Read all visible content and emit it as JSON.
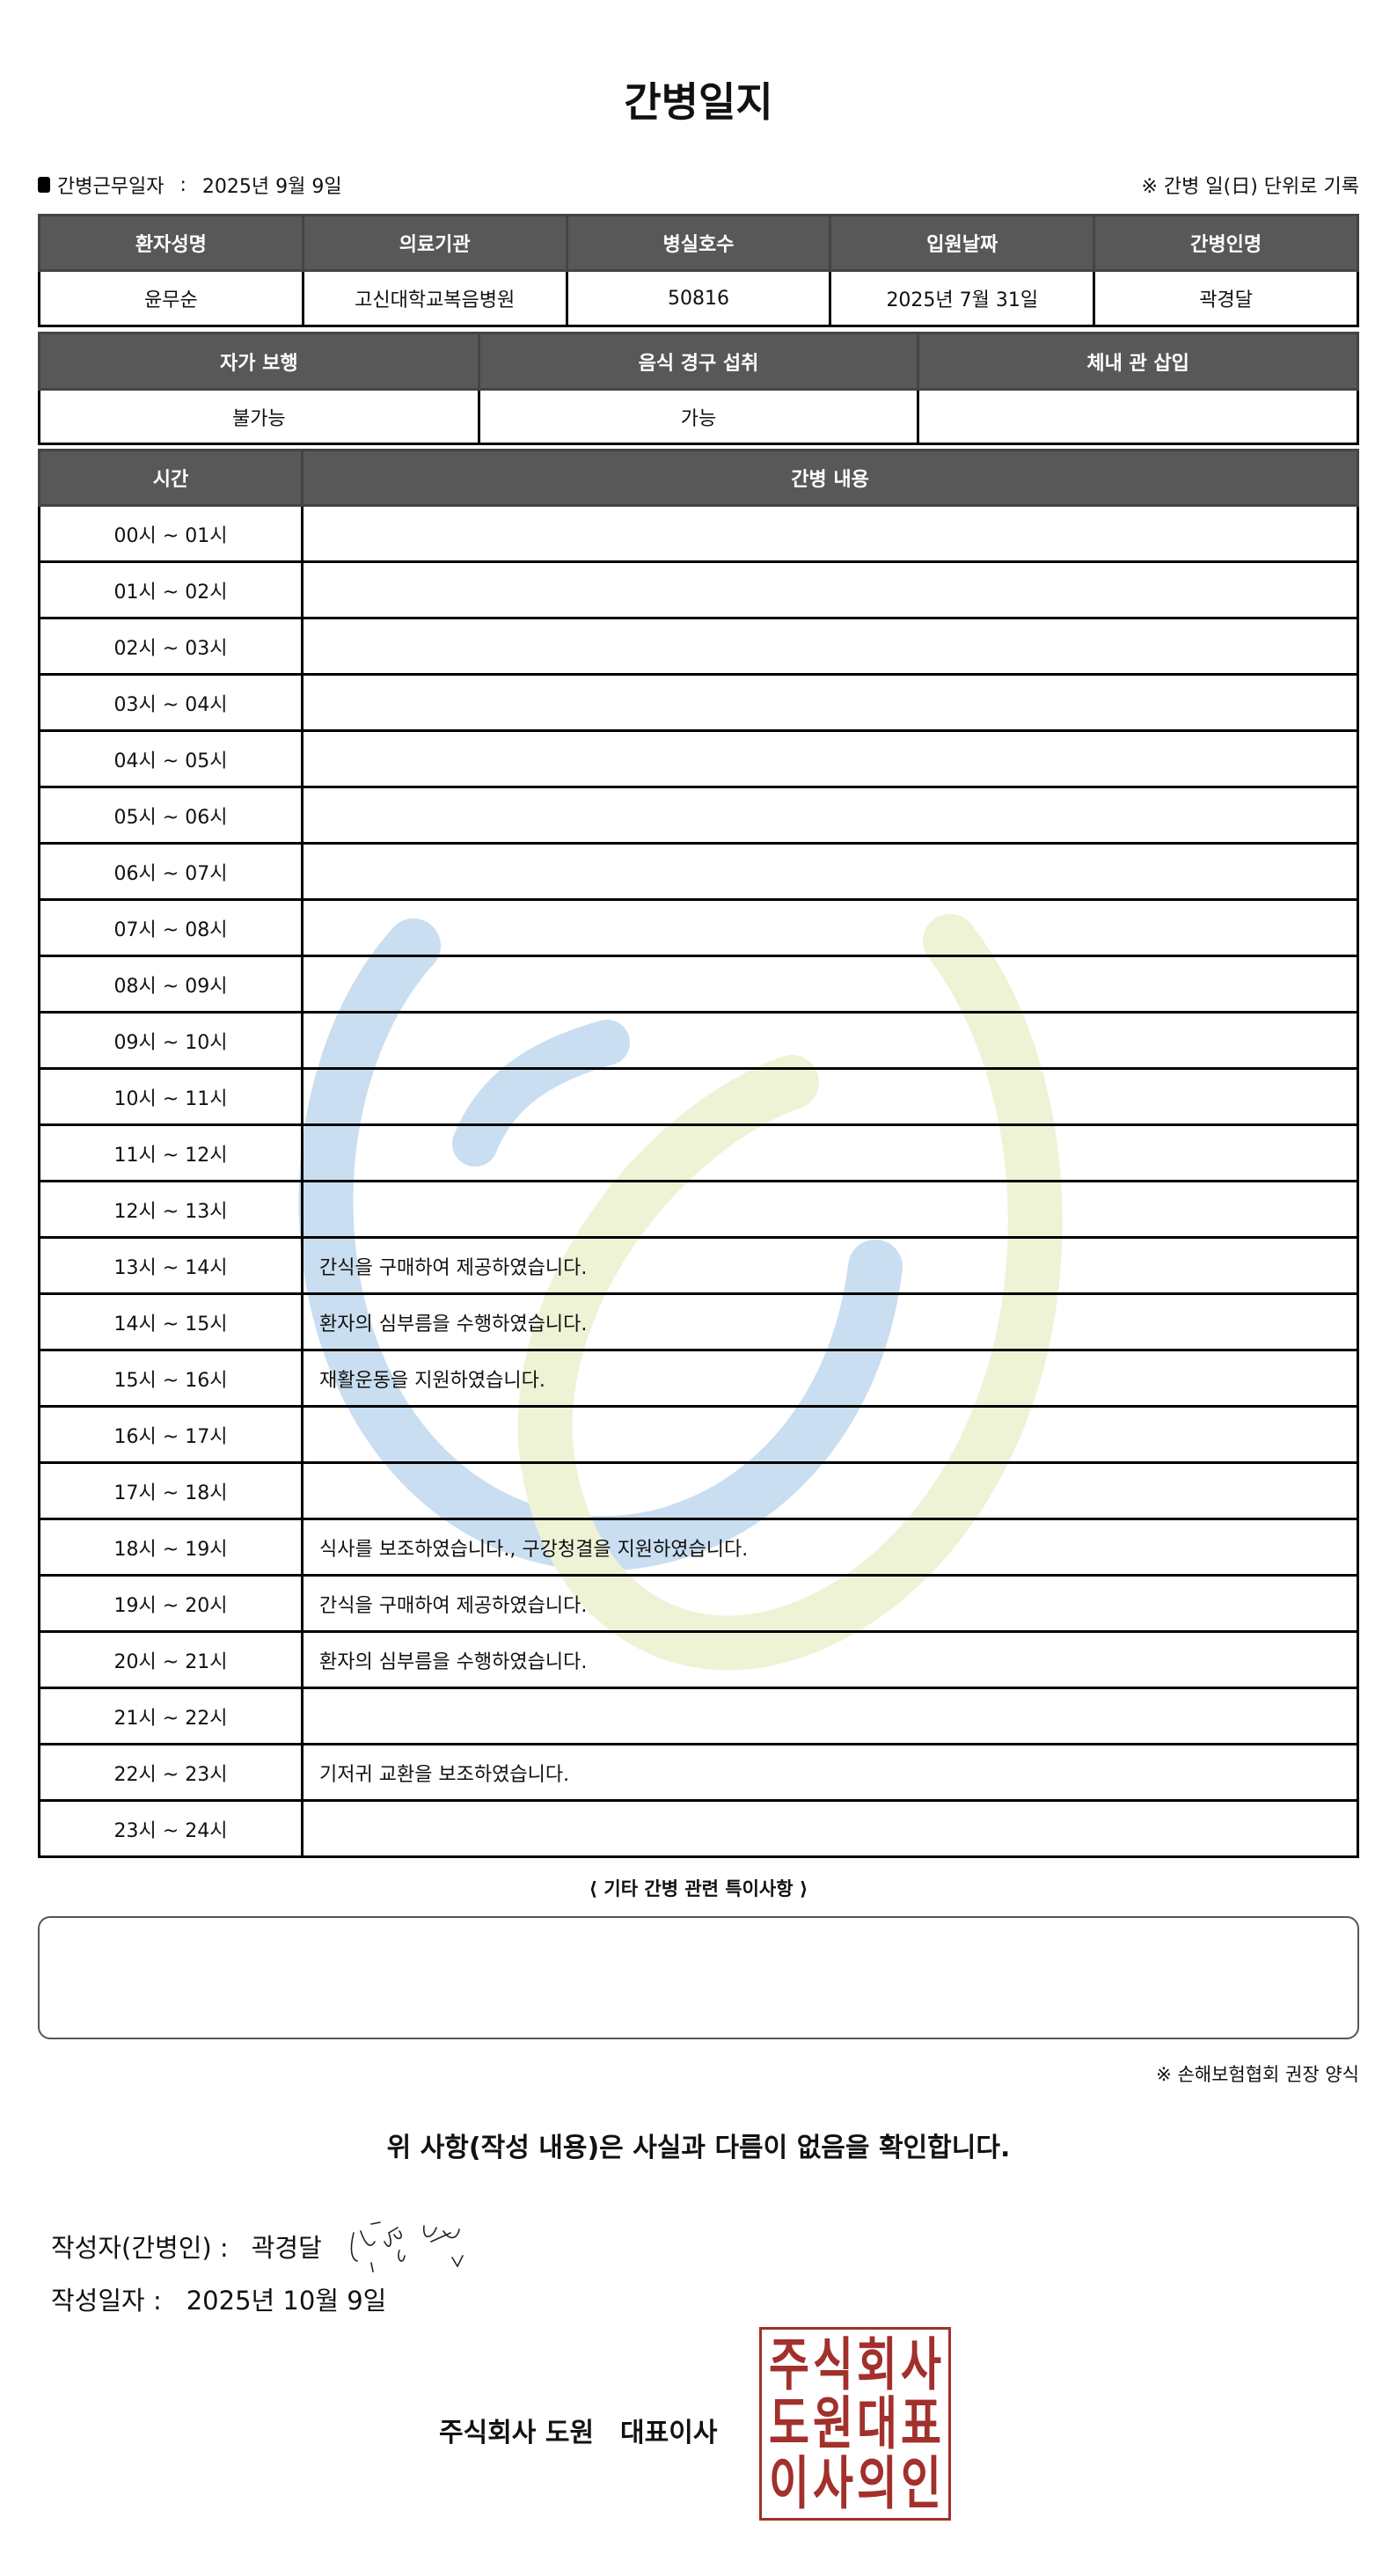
{
  "title": "간병일지",
  "work_date_label": "간병근무일자",
  "work_date_sep": ":",
  "work_date": "2025년 9월 9일",
  "unit_note": "※ 간병 일(日) 단위로 기록",
  "patient_table": {
    "headers": [
      "환자성명",
      "의료기관",
      "병실호수",
      "입원날짜",
      "간병인명"
    ],
    "values": [
      "윤무순",
      "고신대학교복음병원",
      "50816",
      "2025년 7월 31일",
      "곽경달"
    ]
  },
  "status_table": {
    "headers": [
      "자가 보행",
      "음식 경구 섭취",
      "체내 관 삽입"
    ],
    "values": [
      "불가능",
      "가능",
      ""
    ]
  },
  "log_table": {
    "headers": [
      "시간",
      "간병 내용"
    ],
    "rows": [
      {
        "time": "00시 ~ 01시",
        "content": ""
      },
      {
        "time": "01시 ~ 02시",
        "content": ""
      },
      {
        "time": "02시 ~ 03시",
        "content": ""
      },
      {
        "time": "03시 ~ 04시",
        "content": ""
      },
      {
        "time": "04시 ~ 05시",
        "content": ""
      },
      {
        "time": "05시 ~ 06시",
        "content": ""
      },
      {
        "time": "06시 ~ 07시",
        "content": ""
      },
      {
        "time": "07시 ~ 08시",
        "content": ""
      },
      {
        "time": "08시 ~ 09시",
        "content": ""
      },
      {
        "time": "09시 ~ 10시",
        "content": ""
      },
      {
        "time": "10시 ~ 11시",
        "content": ""
      },
      {
        "time": "11시 ~ 12시",
        "content": ""
      },
      {
        "time": "12시 ~ 13시",
        "content": ""
      },
      {
        "time": "13시 ~ 14시",
        "content": "간식을 구매하여 제공하였습니다."
      },
      {
        "time": "14시 ~ 15시",
        "content": "환자의 심부름을 수행하였습니다."
      },
      {
        "time": "15시 ~ 16시",
        "content": "재활운동을 지원하였습니다."
      },
      {
        "time": "16시 ~ 17시",
        "content": ""
      },
      {
        "time": "17시 ~ 18시",
        "content": ""
      },
      {
        "time": "18시 ~ 19시",
        "content": "식사를 보조하였습니다., 구강청결을 지원하였습니다."
      },
      {
        "time": "19시 ~ 20시",
        "content": "간식을 구매하여 제공하였습니다."
      },
      {
        "time": "20시 ~ 21시",
        "content": "환자의 심부름을 수행하였습니다."
      },
      {
        "time": "21시 ~ 22시",
        "content": ""
      },
      {
        "time": "22시 ~ 23시",
        "content": "기저귀 교환을 보조하였습니다."
      },
      {
        "time": "23시 ~ 24시",
        "content": ""
      }
    ]
  },
  "other_label": "⟨ 기타 간병 관련 특이사항 ⟩",
  "other_content": "",
  "form_note": "※ 손해보험협회 권장 양식",
  "confirmation": "위 사항(작성 내용)은 사실과 다름이 없음을 확인합니다.",
  "writer_label": "작성자(간병인) :",
  "writer_name": "곽경달",
  "write_date_label": "작성일자 :",
  "write_date": "2025년 10월 9일",
  "company_name": "주식회사 도원",
  "company_role": "대표이사",
  "stamp_text": "주식회사도원대표이사의인",
  "colors": {
    "header_bg": "#585858",
    "stamp": "#a2302c",
    "watermark_blue": "#c9def0",
    "watermark_yellow": "#eef3d6"
  }
}
